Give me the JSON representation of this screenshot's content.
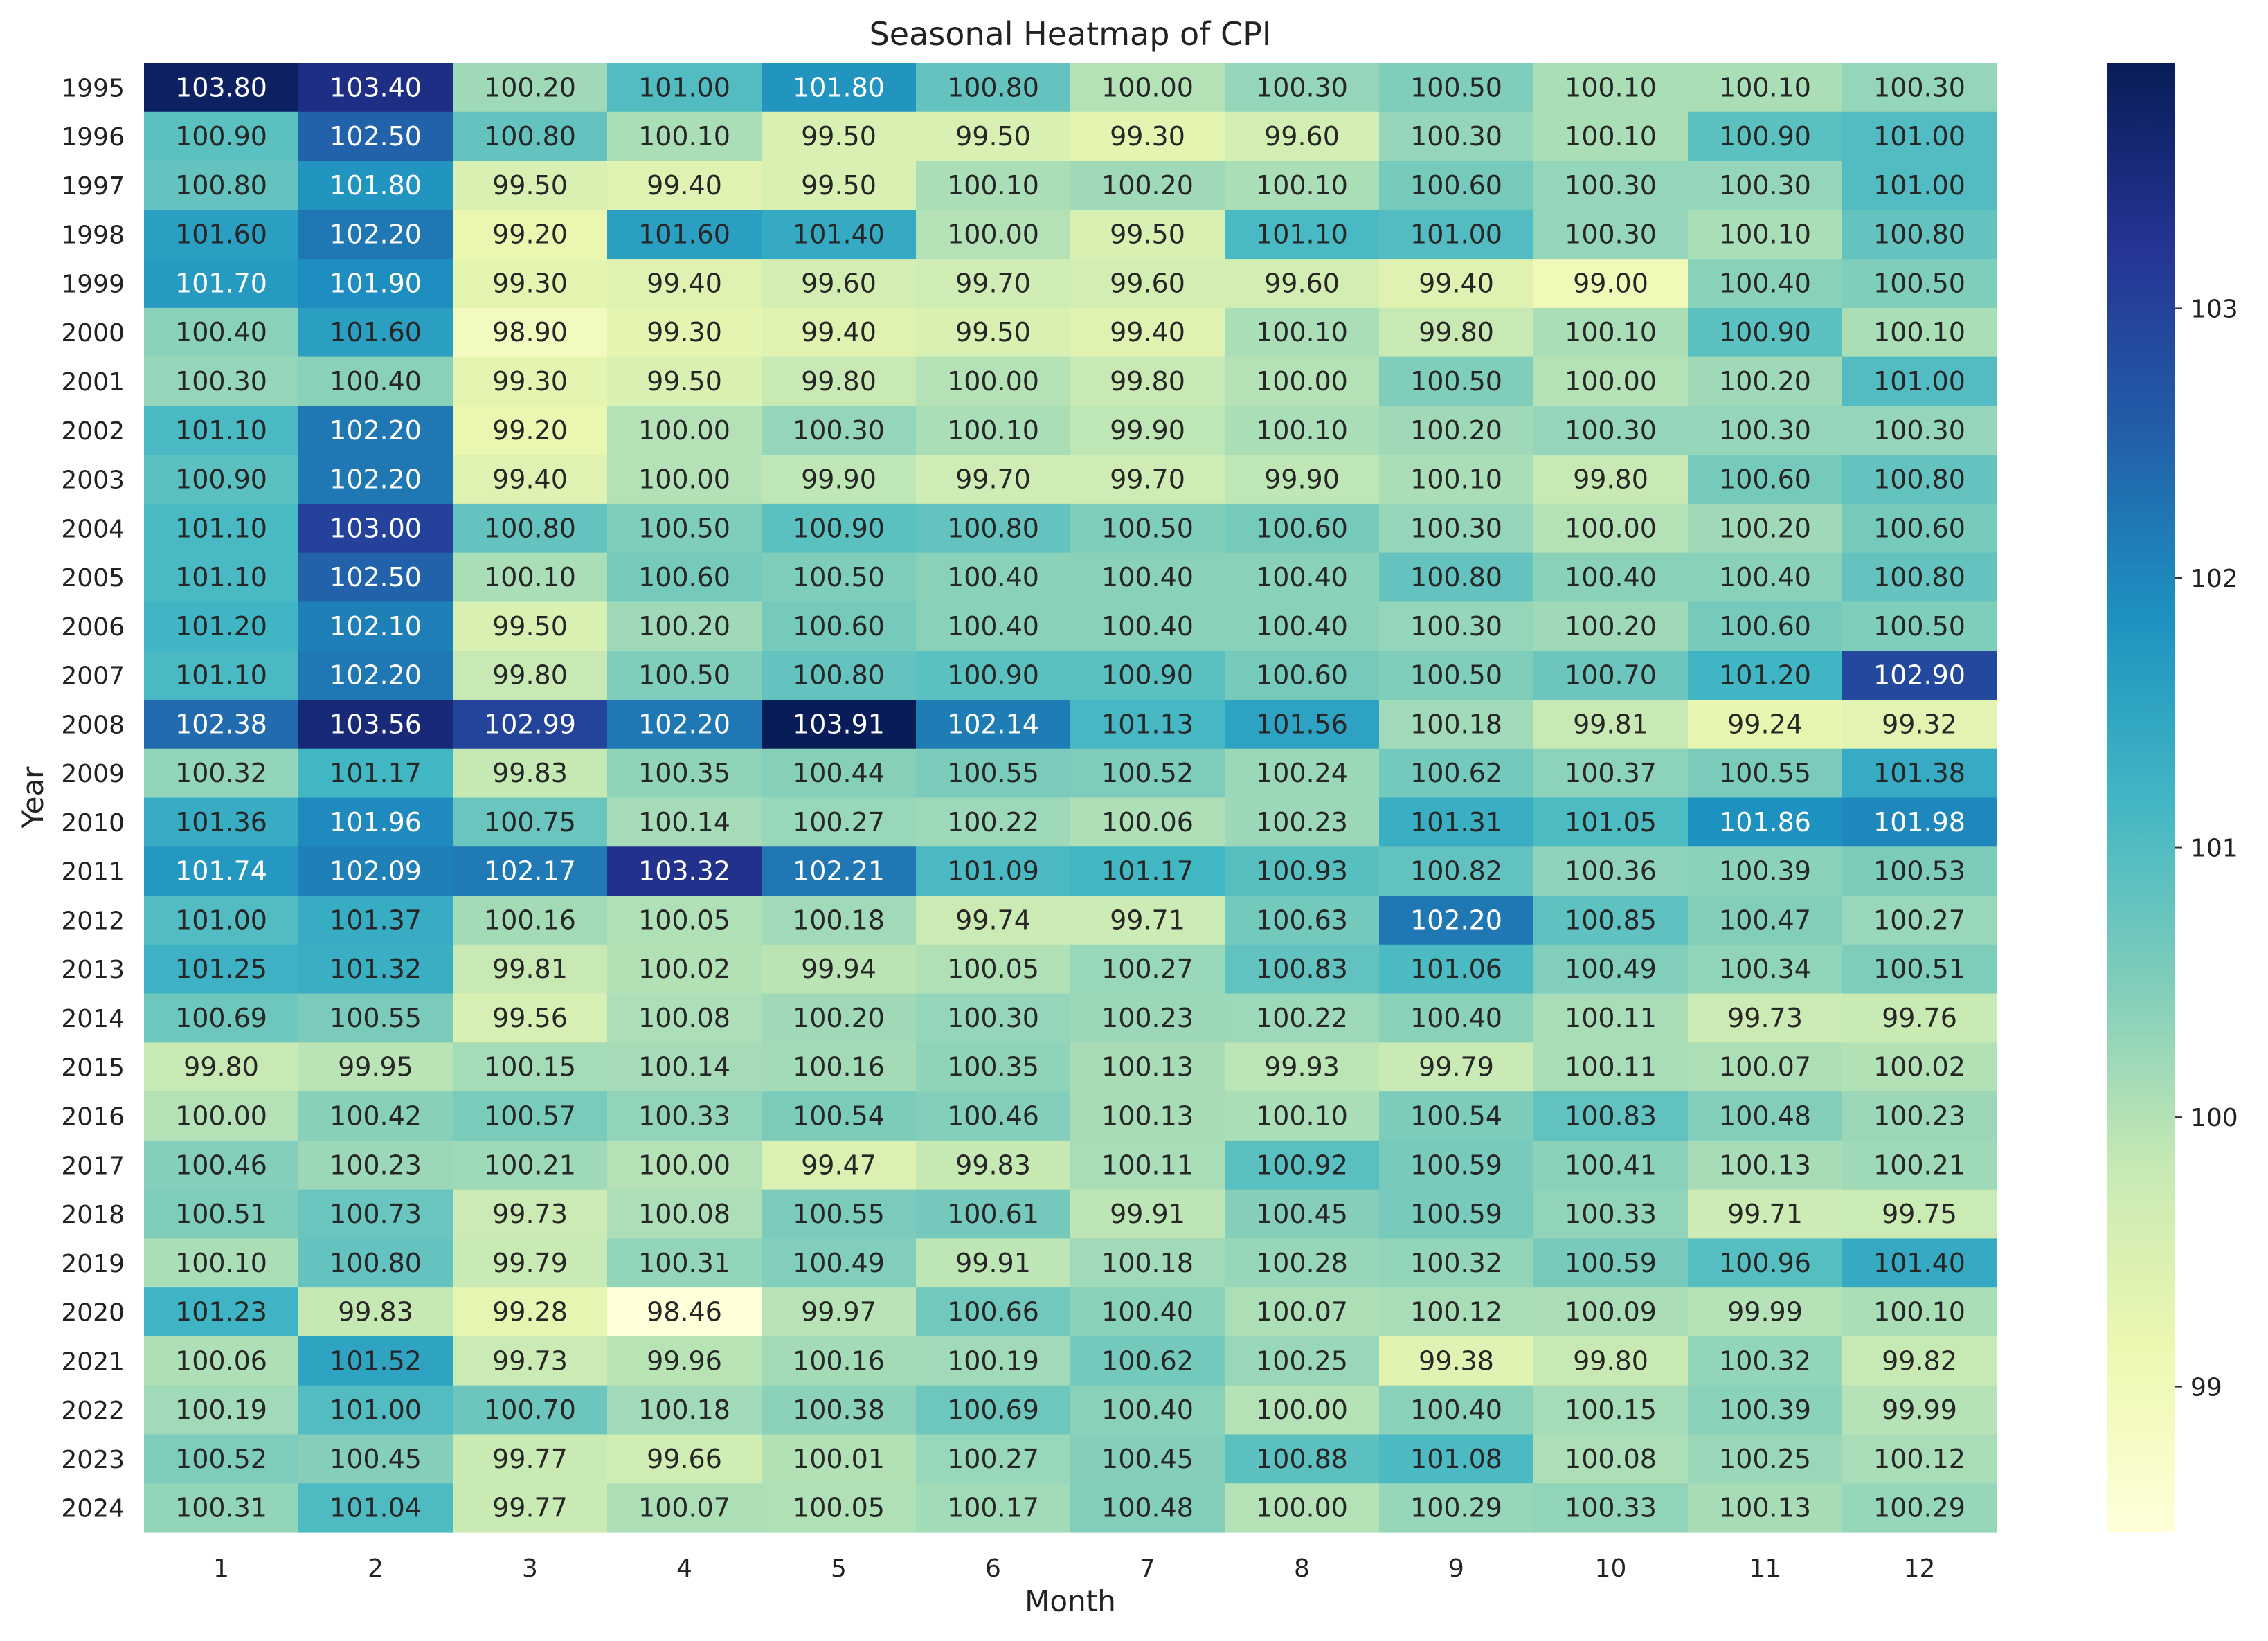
{
  "chart_data": {
    "type": "heatmap",
    "title": "Seasonal Heatmap of CPI",
    "xlabel": "Month",
    "ylabel": "Year",
    "x_categories": [
      "1",
      "2",
      "3",
      "4",
      "5",
      "6",
      "7",
      "8",
      "9",
      "10",
      "11",
      "12"
    ],
    "y_categories": [
      "1995",
      "1996",
      "1997",
      "1998",
      "1999",
      "2000",
      "2001",
      "2002",
      "2003",
      "2004",
      "2005",
      "2006",
      "2007",
      "2008",
      "2009",
      "2010",
      "2011",
      "2012",
      "2013",
      "2014",
      "2015",
      "2016",
      "2017",
      "2018",
      "2019",
      "2020",
      "2021",
      "2022",
      "2023",
      "2024"
    ],
    "cell_labels": [
      [
        "103.80",
        "103.40",
        "100.20",
        "101.00",
        "101.80",
        "100.80",
        "100.00",
        "100.30",
        "100.50",
        "100.10",
        "100.10",
        "100.30"
      ],
      [
        "100.90",
        "102.50",
        "100.80",
        "100.10",
        "99.50",
        "99.50",
        "99.30",
        "99.60",
        "100.30",
        "100.10",
        "100.90",
        "101.00"
      ],
      [
        "100.80",
        "101.80",
        "99.50",
        "99.40",
        "99.50",
        "100.10",
        "100.20",
        "100.10",
        "100.60",
        "100.30",
        "100.30",
        "101.00"
      ],
      [
        "101.60",
        "102.20",
        "99.20",
        "101.60",
        "101.40",
        "100.00",
        "99.50",
        "101.10",
        "101.00",
        "100.30",
        "100.10",
        "100.80"
      ],
      [
        "101.70",
        "101.90",
        "99.30",
        "99.40",
        "99.60",
        "99.70",
        "99.60",
        "99.60",
        "99.40",
        "99.00",
        "100.40",
        "100.50"
      ],
      [
        "100.40",
        "101.60",
        "98.90",
        "99.30",
        "99.40",
        "99.50",
        "99.40",
        "100.10",
        "99.80",
        "100.10",
        "100.90",
        "100.10"
      ],
      [
        "100.30",
        "100.40",
        "99.30",
        "99.50",
        "99.80",
        "100.00",
        "99.80",
        "100.00",
        "100.50",
        "100.00",
        "100.20",
        "101.00"
      ],
      [
        "101.10",
        "102.20",
        "99.20",
        "100.00",
        "100.30",
        "100.10",
        "99.90",
        "100.10",
        "100.20",
        "100.30",
        "100.30",
        "100.30"
      ],
      [
        "100.90",
        "102.20",
        "99.40",
        "100.00",
        "99.90",
        "99.70",
        "99.70",
        "99.90",
        "100.10",
        "99.80",
        "100.60",
        "100.80"
      ],
      [
        "101.10",
        "103.00",
        "100.80",
        "100.50",
        "100.90",
        "100.80",
        "100.50",
        "100.60",
        "100.30",
        "100.00",
        "100.20",
        "100.60"
      ],
      [
        "101.10",
        "102.50",
        "100.10",
        "100.60",
        "100.50",
        "100.40",
        "100.40",
        "100.40",
        "100.80",
        "100.40",
        "100.40",
        "100.80"
      ],
      [
        "101.20",
        "102.10",
        "99.50",
        "100.20",
        "100.60",
        "100.40",
        "100.40",
        "100.40",
        "100.30",
        "100.20",
        "100.60",
        "100.50"
      ],
      [
        "101.10",
        "102.20",
        "99.80",
        "100.50",
        "100.80",
        "100.90",
        "100.90",
        "100.60",
        "100.50",
        "100.70",
        "101.20",
        "102.90"
      ],
      [
        "102.38",
        "103.56",
        "102.99",
        "102.20",
        "103.91",
        "102.14",
        "101.13",
        "101.56",
        "100.18",
        "99.81",
        "99.24",
        "99.32"
      ],
      [
        "100.32",
        "101.17",
        "99.83",
        "100.35",
        "100.44",
        "100.55",
        "100.52",
        "100.24",
        "100.62",
        "100.37",
        "100.55",
        "101.38"
      ],
      [
        "101.36",
        "101.96",
        "100.75",
        "100.14",
        "100.27",
        "100.22",
        "100.06",
        "100.23",
        "101.31",
        "101.05",
        "101.86",
        "101.98"
      ],
      [
        "101.74",
        "102.09",
        "102.17",
        "103.32",
        "102.21",
        "101.09",
        "101.17",
        "100.93",
        "100.82",
        "100.36",
        "100.39",
        "100.53"
      ],
      [
        "101.00",
        "101.37",
        "100.16",
        "100.05",
        "100.18",
        "99.74",
        "99.71",
        "100.63",
        "102.20",
        "100.85",
        "100.47",
        "100.27"
      ],
      [
        "101.25",
        "101.32",
        "99.81",
        "100.02",
        "99.94",
        "100.05",
        "100.27",
        "100.83",
        "101.06",
        "100.49",
        "100.34",
        "100.51"
      ],
      [
        "100.69",
        "100.55",
        "99.56",
        "100.08",
        "100.20",
        "100.30",
        "100.23",
        "100.22",
        "100.40",
        "100.11",
        "99.73",
        "99.76"
      ],
      [
        "99.80",
        "99.95",
        "100.15",
        "100.14",
        "100.16",
        "100.35",
        "100.13",
        "99.93",
        "99.79",
        "100.11",
        "100.07",
        "100.02"
      ],
      [
        "100.00",
        "100.42",
        "100.57",
        "100.33",
        "100.54",
        "100.46",
        "100.13",
        "100.10",
        "100.54",
        "100.83",
        "100.48",
        "100.23"
      ],
      [
        "100.46",
        "100.23",
        "100.21",
        "100.00",
        "99.47",
        "99.83",
        "100.11",
        "100.92",
        "100.59",
        "100.41",
        "100.13",
        "100.21"
      ],
      [
        "100.51",
        "100.73",
        "99.73",
        "100.08",
        "100.55",
        "100.61",
        "99.91",
        "100.45",
        "100.59",
        "100.33",
        "99.71",
        "99.75"
      ],
      [
        "100.10",
        "100.80",
        "99.79",
        "100.31",
        "100.49",
        "99.91",
        "100.18",
        "100.28",
        "100.32",
        "100.59",
        "100.96",
        "101.40"
      ],
      [
        "101.23",
        "99.83",
        "99.28",
        "98.46",
        "99.97",
        "100.66",
        "100.40",
        "100.07",
        "100.12",
        "100.09",
        "99.99",
        "100.10"
      ],
      [
        "100.06",
        "101.52",
        "99.73",
        "99.96",
        "100.16",
        "100.19",
        "100.62",
        "100.25",
        "99.38",
        "99.80",
        "100.32",
        "99.82"
      ],
      [
        "100.19",
        "101.00",
        "100.70",
        "100.18",
        "100.38",
        "100.69",
        "100.40",
        "100.00",
        "100.40",
        "100.15",
        "100.39",
        "99.99"
      ],
      [
        "100.52",
        "100.45",
        "99.77",
        "99.66",
        "100.01",
        "100.27",
        "100.45",
        "100.88",
        "101.08",
        "100.08",
        "100.25",
        "100.12"
      ],
      [
        "100.31",
        "101.04",
        "99.77",
        "100.07",
        "100.05",
        "100.17",
        "100.48",
        "100.00",
        "100.29",
        "100.33",
        "100.13",
        "100.29"
      ]
    ],
    "color_range": [
      98.46,
      103.91
    ],
    "colormap": "YlGnBu",
    "colormap_stops": [
      "#ffffd9",
      "#edf8b1",
      "#c7e9b4",
      "#7fcdbb",
      "#41b6c4",
      "#1d91c0",
      "#225ea8",
      "#253494",
      "#081d58"
    ],
    "colorbar_ticks": [
      99,
      100,
      101,
      102,
      103
    ],
    "grid": false
  }
}
